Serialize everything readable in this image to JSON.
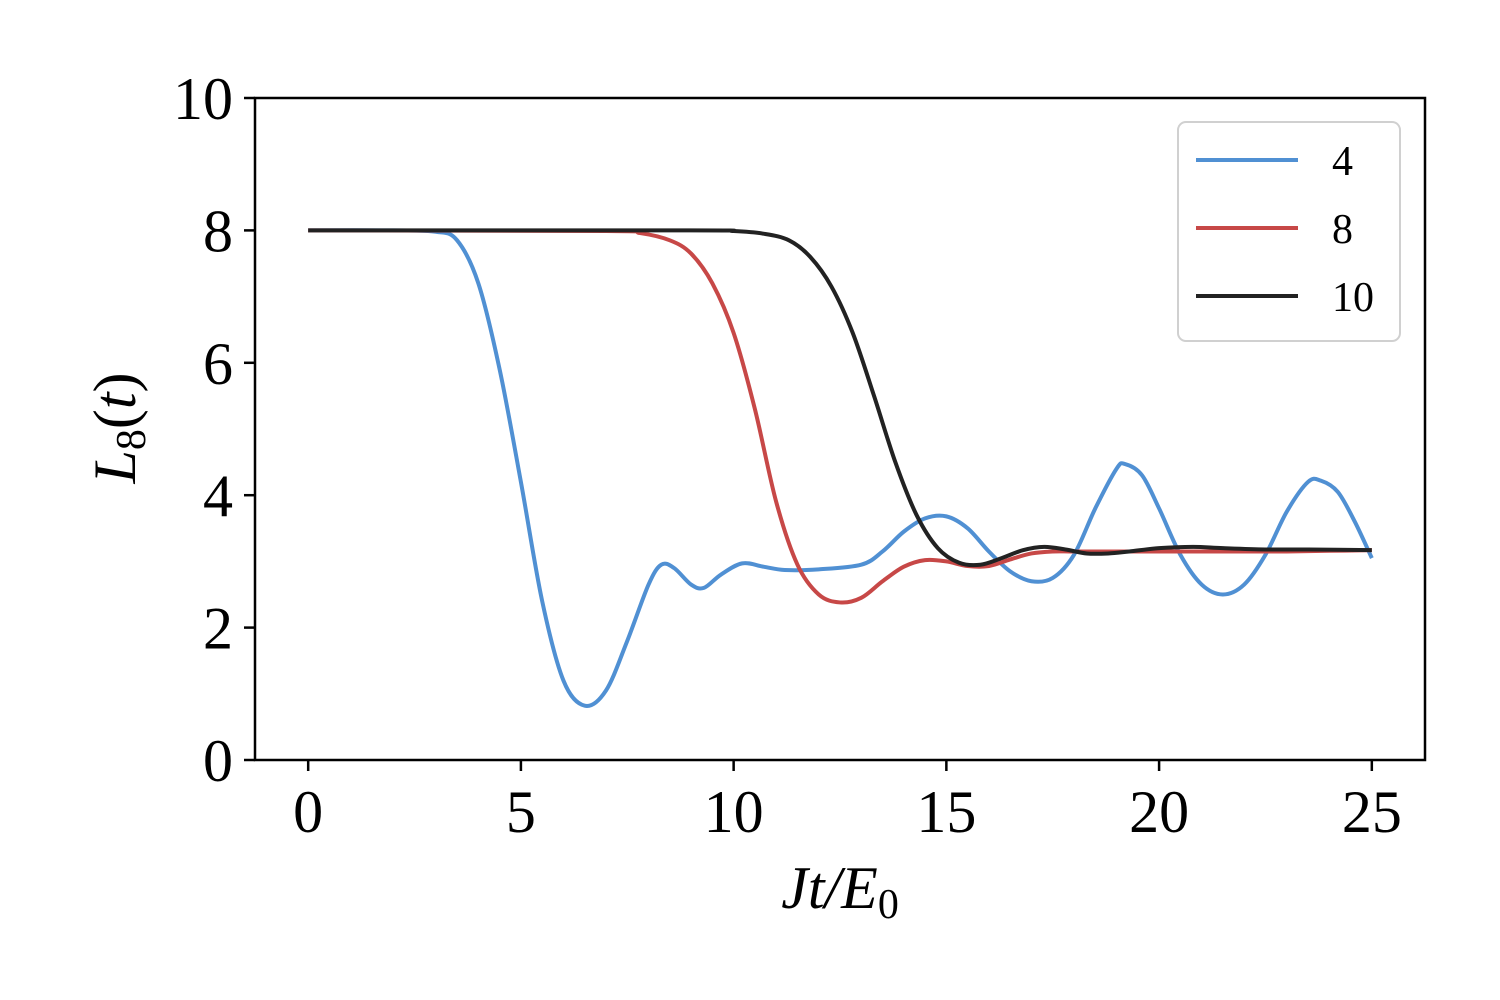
{
  "chart_data": {
    "type": "line",
    "title": "",
    "xlabel": "Jt/E0",
    "ylabel": "L8(t)",
    "xlim": [
      -1.25,
      26.25
    ],
    "ylim": [
      0,
      10
    ],
    "xticks": [
      0,
      5,
      10,
      15,
      20,
      25
    ],
    "yticks": [
      0,
      2,
      4,
      6,
      8,
      10
    ],
    "grid": false,
    "legend_position": "top-right",
    "series": [
      {
        "name": "4",
        "color": "#5090d3",
        "points": [
          [
            0,
            8
          ],
          [
            2,
            8
          ],
          [
            3,
            7.98
          ],
          [
            3.5,
            7.85
          ],
          [
            4,
            7.2
          ],
          [
            4.5,
            5.9
          ],
          [
            5,
            4.2
          ],
          [
            5.5,
            2.4
          ],
          [
            6,
            1.2
          ],
          [
            6.5,
            0.82
          ],
          [
            7,
            1.05
          ],
          [
            7.5,
            1.8
          ],
          [
            8,
            2.65
          ],
          [
            8.3,
            2.95
          ],
          [
            8.6,
            2.9
          ],
          [
            9,
            2.65
          ],
          [
            9.3,
            2.6
          ],
          [
            9.7,
            2.8
          ],
          [
            10.2,
            2.97
          ],
          [
            10.7,
            2.92
          ],
          [
            11.2,
            2.87
          ],
          [
            12,
            2.88
          ],
          [
            13,
            2.95
          ],
          [
            13.5,
            3.15
          ],
          [
            14,
            3.45
          ],
          [
            14.5,
            3.65
          ],
          [
            15,
            3.68
          ],
          [
            15.5,
            3.5
          ],
          [
            16,
            3.15
          ],
          [
            16.5,
            2.85
          ],
          [
            17,
            2.7
          ],
          [
            17.5,
            2.75
          ],
          [
            18,
            3.1
          ],
          [
            18.5,
            3.8
          ],
          [
            19,
            4.4
          ],
          [
            19.2,
            4.47
          ],
          [
            19.6,
            4.3
          ],
          [
            20,
            3.8
          ],
          [
            20.5,
            3.1
          ],
          [
            21,
            2.65
          ],
          [
            21.5,
            2.5
          ],
          [
            22,
            2.65
          ],
          [
            22.5,
            3.1
          ],
          [
            23,
            3.75
          ],
          [
            23.5,
            4.2
          ],
          [
            23.8,
            4.22
          ],
          [
            24.2,
            4.05
          ],
          [
            24.6,
            3.6
          ],
          [
            25,
            3.05
          ]
        ]
      },
      {
        "name": "8",
        "color": "#c74847",
        "points": [
          [
            0,
            8
          ],
          [
            7,
            7.99
          ],
          [
            7.8,
            7.96
          ],
          [
            8.5,
            7.85
          ],
          [
            9,
            7.65
          ],
          [
            9.5,
            7.2
          ],
          [
            10,
            6.45
          ],
          [
            10.5,
            5.3
          ],
          [
            11,
            3.9
          ],
          [
            11.5,
            2.95
          ],
          [
            12,
            2.5
          ],
          [
            12.5,
            2.38
          ],
          [
            13,
            2.45
          ],
          [
            13.5,
            2.7
          ],
          [
            14,
            2.92
          ],
          [
            14.5,
            3.02
          ],
          [
            15,
            3.0
          ],
          [
            15.5,
            2.93
          ],
          [
            16,
            2.93
          ],
          [
            16.5,
            3.03
          ],
          [
            17,
            3.12
          ],
          [
            17.5,
            3.15
          ],
          [
            18,
            3.15
          ],
          [
            19,
            3.15
          ],
          [
            20,
            3.15
          ],
          [
            21,
            3.15
          ],
          [
            22,
            3.15
          ],
          [
            23,
            3.15
          ],
          [
            24,
            3.16
          ],
          [
            25,
            3.17
          ]
        ]
      },
      {
        "name": "10",
        "color": "#222222",
        "points": [
          [
            0,
            8
          ],
          [
            9,
            8.0
          ],
          [
            10,
            7.99
          ],
          [
            10.7,
            7.95
          ],
          [
            11.3,
            7.85
          ],
          [
            11.8,
            7.6
          ],
          [
            12.3,
            7.15
          ],
          [
            12.8,
            6.45
          ],
          [
            13.3,
            5.5
          ],
          [
            13.8,
            4.5
          ],
          [
            14.3,
            3.7
          ],
          [
            14.8,
            3.2
          ],
          [
            15.3,
            2.98
          ],
          [
            15.8,
            2.95
          ],
          [
            16.3,
            3.05
          ],
          [
            16.8,
            3.17
          ],
          [
            17.3,
            3.22
          ],
          [
            17.8,
            3.18
          ],
          [
            18.3,
            3.12
          ],
          [
            18.8,
            3.12
          ],
          [
            19.3,
            3.15
          ],
          [
            20,
            3.2
          ],
          [
            20.8,
            3.22
          ],
          [
            21.5,
            3.2
          ],
          [
            22.5,
            3.18
          ],
          [
            23.5,
            3.18
          ],
          [
            25,
            3.17
          ]
        ]
      }
    ]
  }
}
